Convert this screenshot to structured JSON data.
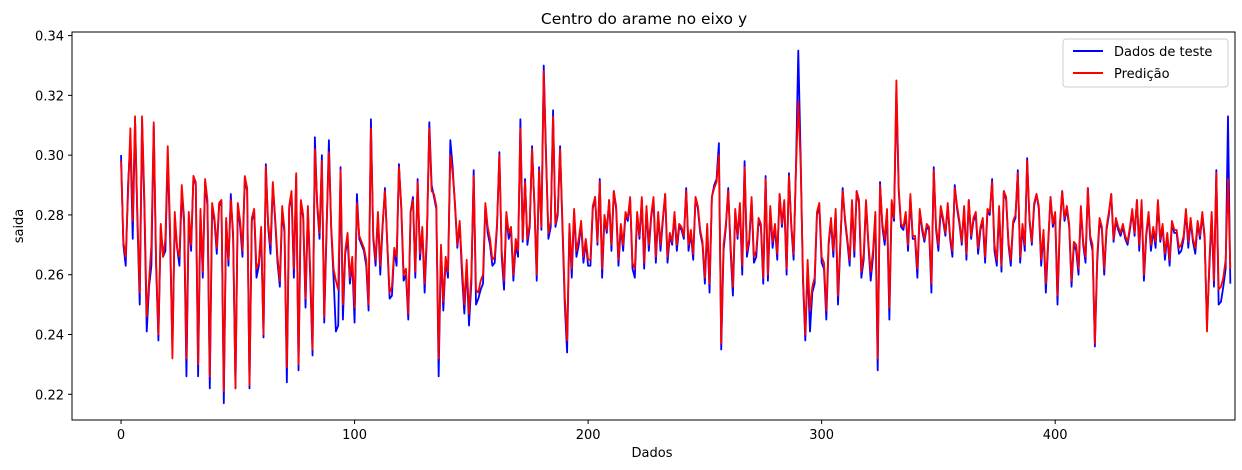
{
  "chart_data": {
    "type": "line",
    "title": "Centro do arame no eixo y",
    "xlabel": "Dados",
    "ylabel": "saida",
    "xlim": [
      -21,
      477
    ],
    "ylim": [
      0.2114,
      0.3412
    ],
    "xticks": [
      0,
      100,
      200,
      300,
      400
    ],
    "yticks": [
      0.22,
      0.24,
      0.26,
      0.28,
      0.3,
      0.32,
      0.34
    ],
    "ytick_labels": [
      "0.22",
      "0.24",
      "0.26",
      "0.28",
      "0.30",
      "0.32",
      "0.34"
    ],
    "grid": false,
    "legend_position": "top-right",
    "series": [
      {
        "name": "Dados de teste",
        "color": "#0000ff",
        "x_start": 0,
        "values": [
          0.3,
          0.27,
          0.263,
          0.29,
          0.305,
          0.272,
          0.312,
          0.278,
          0.25,
          0.312,
          0.282,
          0.241,
          0.256,
          0.263,
          0.31,
          0.263,
          0.238,
          0.276,
          0.266,
          0.268,
          0.3,
          0.272,
          0.235,
          0.279,
          0.269,
          0.263,
          0.288,
          0.277,
          0.226,
          0.279,
          0.268,
          0.293,
          0.29,
          0.226,
          0.281,
          0.259,
          0.291,
          0.283,
          0.222,
          0.282,
          0.278,
          0.267,
          0.283,
          0.284,
          0.217,
          0.278,
          0.263,
          0.287,
          0.272,
          0.222,
          0.283,
          0.276,
          0.266,
          0.292,
          0.288,
          0.222,
          0.278,
          0.281,
          0.259,
          0.263,
          0.274,
          0.239,
          0.297,
          0.276,
          0.267,
          0.29,
          0.278,
          0.264,
          0.256,
          0.281,
          0.274,
          0.224,
          0.282,
          0.287,
          0.259,
          0.293,
          0.228,
          0.284,
          0.279,
          0.249,
          0.282,
          0.259,
          0.233,
          0.306,
          0.283,
          0.272,
          0.3,
          0.244,
          0.274,
          0.305,
          0.275,
          0.259,
          0.241,
          0.243,
          0.296,
          0.245,
          0.267,
          0.272,
          0.257,
          0.264,
          0.244,
          0.287,
          0.272,
          0.27,
          0.268,
          0.263,
          0.248,
          0.312,
          0.272,
          0.263,
          0.28,
          0.26,
          0.276,
          0.289,
          0.27,
          0.252,
          0.253,
          0.268,
          0.263,
          0.297,
          0.282,
          0.258,
          0.26,
          0.245,
          0.281,
          0.286,
          0.259,
          0.292,
          0.265,
          0.275,
          0.254,
          0.273,
          0.311,
          0.29,
          0.286,
          0.282,
          0.226,
          0.269,
          0.248,
          0.265,
          0.259,
          0.305,
          0.296,
          0.283,
          0.269,
          0.277,
          0.26,
          0.247,
          0.263,
          0.243,
          0.257,
          0.295,
          0.25,
          0.252,
          0.255,
          0.257,
          0.283,
          0.274,
          0.27,
          0.263,
          0.264,
          0.276,
          0.301,
          0.266,
          0.255,
          0.28,
          0.272,
          0.275,
          0.258,
          0.27,
          0.266,
          0.312,
          0.271,
          0.292,
          0.27,
          0.276,
          0.303,
          0.283,
          0.258,
          0.296,
          0.275,
          0.33,
          0.3,
          0.272,
          0.276,
          0.315,
          0.276,
          0.28,
          0.303,
          0.276,
          0.25,
          0.234,
          0.276,
          0.259,
          0.281,
          0.266,
          0.27,
          0.277,
          0.264,
          0.271,
          0.263,
          0.263,
          0.282,
          0.286,
          0.27,
          0.292,
          0.259,
          0.279,
          0.274,
          0.285,
          0.268,
          0.288,
          0.282,
          0.263,
          0.276,
          0.268,
          0.28,
          0.278,
          0.285,
          0.262,
          0.259,
          0.28,
          0.272,
          0.285,
          0.262,
          0.282,
          0.268,
          0.279,
          0.285,
          0.264,
          0.28,
          0.268,
          0.278,
          0.287,
          0.264,
          0.273,
          0.27,
          0.28,
          0.268,
          0.276,
          0.275,
          0.272,
          0.289,
          0.268,
          0.274,
          0.265,
          0.286,
          0.282,
          0.274,
          0.27,
          0.257,
          0.276,
          0.254,
          0.286,
          0.29,
          0.292,
          0.304,
          0.235,
          0.268,
          0.276,
          0.289,
          0.268,
          0.253,
          0.281,
          0.272,
          0.283,
          0.26,
          0.298,
          0.266,
          0.271,
          0.285,
          0.264,
          0.266,
          0.278,
          0.276,
          0.257,
          0.293,
          0.258,
          0.282,
          0.269,
          0.276,
          0.265,
          0.287,
          0.276,
          0.284,
          0.26,
          0.294,
          0.276,
          0.265,
          0.296,
          0.335,
          0.3,
          0.258,
          0.238,
          0.263,
          0.241,
          0.254,
          0.257,
          0.28,
          0.283,
          0.264,
          0.262,
          0.245,
          0.27,
          0.278,
          0.266,
          0.281,
          0.25,
          0.27,
          0.289,
          0.278,
          0.271,
          0.263,
          0.284,
          0.266,
          0.288,
          0.284,
          0.259,
          0.265,
          0.284,
          0.27,
          0.258,
          0.266,
          0.28,
          0.228,
          0.291,
          0.276,
          0.27,
          0.281,
          0.245,
          0.284,
          0.278,
          0.322,
          0.288,
          0.276,
          0.275,
          0.28,
          0.268,
          0.286,
          0.272,
          0.272,
          0.259,
          0.281,
          0.275,
          0.271,
          0.276,
          0.275,
          0.254,
          0.296,
          0.275,
          0.268,
          0.282,
          0.278,
          0.273,
          0.283,
          0.272,
          0.266,
          0.29,
          0.282,
          0.277,
          0.27,
          0.282,
          0.265,
          0.285,
          0.272,
          0.278,
          0.28,
          0.267,
          0.275,
          0.278,
          0.264,
          0.281,
          0.28,
          0.292,
          0.268,
          0.263,
          0.282,
          0.261,
          0.288,
          0.285,
          0.27,
          0.263,
          0.277,
          0.279,
          0.295,
          0.264,
          0.276,
          0.268,
          0.299,
          0.278,
          0.27,
          0.283,
          0.287,
          0.282,
          0.263,
          0.274,
          0.254,
          0.27,
          0.286,
          0.276,
          0.28,
          0.25,
          0.276,
          0.288,
          0.278,
          0.282,
          0.276,
          0.256,
          0.27,
          0.268,
          0.26,
          0.282,
          0.27,
          0.264,
          0.289,
          0.272,
          0.268,
          0.236,
          0.264,
          0.278,
          0.275,
          0.26,
          0.275,
          0.28,
          0.287,
          0.271,
          0.278,
          0.275,
          0.273,
          0.276,
          0.272,
          0.27,
          0.275,
          0.281,
          0.273,
          0.285,
          0.268,
          0.284,
          0.258,
          0.273,
          0.28,
          0.268,
          0.275,
          0.269,
          0.284,
          0.271,
          0.276,
          0.265,
          0.273,
          0.263,
          0.277,
          0.274,
          0.274,
          0.267,
          0.268,
          0.272,
          0.281,
          0.269,
          0.278,
          0.271,
          0.267,
          0.277,
          0.272,
          0.28,
          0.272,
          0.243,
          0.262,
          0.28,
          0.256,
          0.295,
          0.25,
          0.251,
          0.256,
          0.262,
          0.313,
          0.257
        ]
      },
      {
        "name": "Predição",
        "color": "#ff0000",
        "x_start": 0,
        "values": [
          0.298,
          0.271,
          0.266,
          0.287,
          0.309,
          0.278,
          0.313,
          0.28,
          0.254,
          0.313,
          0.285,
          0.246,
          0.258,
          0.27,
          0.311,
          0.265,
          0.24,
          0.277,
          0.266,
          0.272,
          0.303,
          0.276,
          0.232,
          0.281,
          0.269,
          0.266,
          0.29,
          0.279,
          0.232,
          0.281,
          0.27,
          0.293,
          0.291,
          0.23,
          0.282,
          0.261,
          0.292,
          0.285,
          0.226,
          0.284,
          0.279,
          0.269,
          0.284,
          0.285,
          0.221,
          0.279,
          0.265,
          0.285,
          0.274,
          0.222,
          0.284,
          0.278,
          0.268,
          0.293,
          0.289,
          0.223,
          0.279,
          0.282,
          0.262,
          0.264,
          0.276,
          0.24,
          0.296,
          0.277,
          0.27,
          0.291,
          0.279,
          0.266,
          0.258,
          0.283,
          0.275,
          0.229,
          0.283,
          0.288,
          0.262,
          0.294,
          0.23,
          0.285,
          0.28,
          0.252,
          0.283,
          0.262,
          0.235,
          0.302,
          0.284,
          0.274,
          0.298,
          0.246,
          0.276,
          0.301,
          0.276,
          0.262,
          0.258,
          0.255,
          0.295,
          0.25,
          0.268,
          0.274,
          0.259,
          0.266,
          0.249,
          0.284,
          0.273,
          0.271,
          0.269,
          0.265,
          0.25,
          0.309,
          0.273,
          0.265,
          0.281,
          0.263,
          0.277,
          0.288,
          0.271,
          0.254,
          0.256,
          0.269,
          0.266,
          0.296,
          0.283,
          0.26,
          0.262,
          0.247,
          0.281,
          0.285,
          0.261,
          0.291,
          0.267,
          0.276,
          0.257,
          0.275,
          0.309,
          0.288,
          0.287,
          0.283,
          0.232,
          0.27,
          0.251,
          0.266,
          0.261,
          0.3,
          0.294,
          0.284,
          0.27,
          0.278,
          0.263,
          0.25,
          0.265,
          0.247,
          0.26,
          0.293,
          0.255,
          0.254,
          0.258,
          0.26,
          0.284,
          0.276,
          0.272,
          0.265,
          0.266,
          0.277,
          0.3,
          0.268,
          0.258,
          0.281,
          0.274,
          0.276,
          0.26,
          0.272,
          0.268,
          0.309,
          0.272,
          0.291,
          0.272,
          0.277,
          0.302,
          0.284,
          0.26,
          0.295,
          0.276,
          0.328,
          0.298,
          0.274,
          0.278,
          0.313,
          0.277,
          0.281,
          0.302,
          0.278,
          0.253,
          0.238,
          0.277,
          0.262,
          0.282,
          0.268,
          0.272,
          0.278,
          0.266,
          0.272,
          0.265,
          0.265,
          0.283,
          0.286,
          0.271,
          0.291,
          0.262,
          0.28,
          0.275,
          0.285,
          0.27,
          0.288,
          0.283,
          0.265,
          0.277,
          0.27,
          0.281,
          0.279,
          0.286,
          0.264,
          0.262,
          0.281,
          0.273,
          0.286,
          0.264,
          0.283,
          0.27,
          0.28,
          0.286,
          0.266,
          0.281,
          0.27,
          0.279,
          0.287,
          0.266,
          0.274,
          0.271,
          0.281,
          0.27,
          0.277,
          0.276,
          0.273,
          0.288,
          0.27,
          0.275,
          0.267,
          0.286,
          0.283,
          0.275,
          0.271,
          0.259,
          0.277,
          0.257,
          0.286,
          0.289,
          0.291,
          0.3,
          0.237,
          0.27,
          0.277,
          0.288,
          0.27,
          0.256,
          0.282,
          0.273,
          0.284,
          0.263,
          0.296,
          0.268,
          0.272,
          0.286,
          0.266,
          0.268,
          0.279,
          0.277,
          0.259,
          0.292,
          0.26,
          0.283,
          0.271,
          0.277,
          0.267,
          0.287,
          0.277,
          0.285,
          0.262,
          0.293,
          0.277,
          0.267,
          0.295,
          0.318,
          0.297,
          0.26,
          0.24,
          0.265,
          0.248,
          0.256,
          0.259,
          0.281,
          0.284,
          0.266,
          0.264,
          0.248,
          0.271,
          0.279,
          0.268,
          0.282,
          0.253,
          0.271,
          0.288,
          0.279,
          0.272,
          0.265,
          0.285,
          0.268,
          0.288,
          0.285,
          0.261,
          0.267,
          0.285,
          0.271,
          0.261,
          0.268,
          0.281,
          0.232,
          0.29,
          0.277,
          0.272,
          0.282,
          0.249,
          0.285,
          0.279,
          0.325,
          0.289,
          0.277,
          0.276,
          0.281,
          0.27,
          0.287,
          0.273,
          0.273,
          0.262,
          0.282,
          0.276,
          0.272,
          0.277,
          0.276,
          0.257,
          0.295,
          0.276,
          0.27,
          0.283,
          0.279,
          0.274,
          0.284,
          0.273,
          0.268,
          0.289,
          0.283,
          0.278,
          0.271,
          0.283,
          0.267,
          0.285,
          0.273,
          0.279,
          0.281,
          0.269,
          0.276,
          0.279,
          0.266,
          0.282,
          0.281,
          0.291,
          0.27,
          0.265,
          0.283,
          0.263,
          0.288,
          0.286,
          0.271,
          0.265,
          0.278,
          0.28,
          0.294,
          0.266,
          0.277,
          0.27,
          0.298,
          0.279,
          0.271,
          0.284,
          0.287,
          0.283,
          0.265,
          0.275,
          0.257,
          0.271,
          0.286,
          0.277,
          0.281,
          0.253,
          0.277,
          0.288,
          0.279,
          0.283,
          0.277,
          0.258,
          0.271,
          0.27,
          0.262,
          0.283,
          0.271,
          0.266,
          0.289,
          0.273,
          0.27,
          0.237,
          0.266,
          0.279,
          0.276,
          0.262,
          0.276,
          0.281,
          0.287,
          0.272,
          0.279,
          0.276,
          0.274,
          0.277,
          0.273,
          0.271,
          0.276,
          0.282,
          0.274,
          0.285,
          0.27,
          0.285,
          0.26,
          0.274,
          0.281,
          0.27,
          0.276,
          0.271,
          0.285,
          0.272,
          0.277,
          0.267,
          0.274,
          0.265,
          0.278,
          0.275,
          0.275,
          0.269,
          0.27,
          0.273,
          0.282,
          0.271,
          0.279,
          0.272,
          0.269,
          0.278,
          0.273,
          0.281,
          0.273,
          0.241,
          0.264,
          0.281,
          0.258,
          0.294,
          0.255,
          0.256,
          0.259,
          0.265,
          0.292,
          0.262
        ]
      }
    ]
  }
}
